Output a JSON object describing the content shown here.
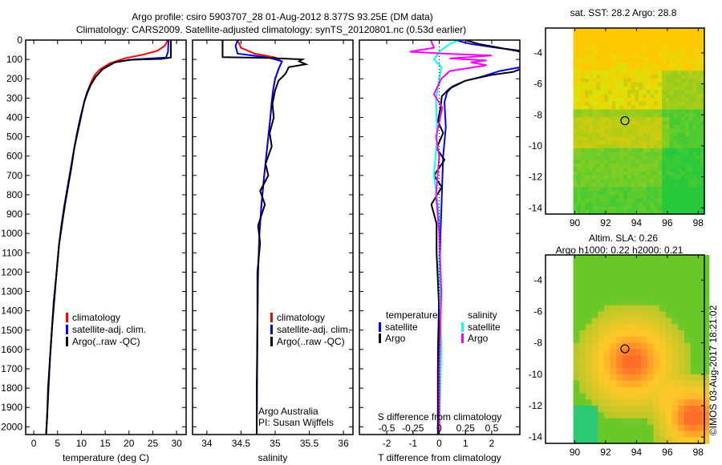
{
  "title": {
    "line1": "Argo profile: csiro 5903707_28 01-Aug-2012 8.377S 93.25E (DM data)",
    "line2": "Climatology: CARS2009. Satellite-adjusted climatology: synTS_20120801.nc (0.53d earlier)"
  },
  "footer": {
    "imos": "©IMOS 03-Aug-2017 18:21:02",
    "credit1": "Argo Australia",
    "credit2": "PI: Susan Wijffels"
  },
  "colors": {
    "climatology": "#ff0000",
    "satellite": "#0000ff",
    "argo": "#000000",
    "sal_satellite": "#00ffff",
    "sal_argo": "#ff00ff"
  },
  "chart_data": [
    {
      "type": "line",
      "id": "temperature",
      "xlabel": "temperature (deg C)",
      "ylabel": "depth",
      "xlim": [
        -1.7,
        32
      ],
      "ylim": [
        2040,
        0
      ],
      "xticks": [
        0,
        5,
        10,
        15,
        20,
        25,
        30
      ],
      "xticklabels": [
        "0",
        "5",
        "10",
        "15",
        "20",
        "25",
        "30"
      ],
      "yticks": [
        0,
        100,
        200,
        300,
        400,
        500,
        600,
        700,
        800,
        900,
        1000,
        1100,
        1200,
        1300,
        1400,
        1500,
        1600,
        1700,
        1800,
        1900,
        2000
      ],
      "yticklabels": [
        "0",
        "100",
        "200",
        "300",
        "400",
        "500",
        "600",
        "700",
        "800",
        "900",
        "1000",
        "1100",
        "1200",
        "1300",
        "1400",
        "1500",
        "1600",
        "1700",
        "1800",
        "1900",
        "2000"
      ],
      "legend": [
        "climatology",
        "satellite-adj. clim.",
        "Argo(..raw -QC)"
      ],
      "series": [
        {
          "name": "climatology",
          "color": "#ff0000",
          "points": [
            [
              28.2,
              0
            ],
            [
              27.5,
              30
            ],
            [
              26,
              55
            ],
            [
              23,
              75
            ],
            [
              19,
              95
            ],
            [
              16,
              120
            ],
            [
              14,
              150
            ],
            [
              12.8,
              180
            ],
            [
              12,
              220
            ],
            [
              11.2,
              270
            ],
            [
              10.6,
              320
            ],
            [
              9.8,
              400
            ],
            [
              9.1,
              480
            ],
            [
              8.5,
              560
            ],
            [
              7.8,
              660
            ],
            [
              7.1,
              760
            ],
            [
              6.4,
              860
            ],
            [
              5.8,
              960
            ],
            [
              5.3,
              1060
            ],
            [
              4.8,
              1200
            ],
            [
              4.2,
              1350
            ],
            [
              3.8,
              1500
            ],
            [
              3.4,
              1650
            ],
            [
              3.1,
              1800
            ],
            [
              2.8,
              1950
            ],
            [
              2.6,
              2040
            ]
          ]
        },
        {
          "name": "satellite-adj. clim.",
          "color": "#0000ff",
          "points": [
            [
              28.3,
              0
            ],
            [
              28.2,
              60
            ],
            [
              27.8,
              90
            ],
            [
              21,
              100
            ],
            [
              17,
              115
            ],
            [
              14.5,
              150
            ],
            [
              13,
              190
            ],
            [
              12,
              230
            ],
            [
              11.2,
              270
            ],
            [
              10.6,
              320
            ],
            [
              9.8,
              400
            ],
            [
              9.1,
              480
            ],
            [
              8.5,
              560
            ],
            [
              7.8,
              660
            ],
            [
              7.1,
              760
            ],
            [
              6.4,
              860
            ],
            [
              5.8,
              960
            ],
            [
              5.3,
              1060
            ],
            [
              4.8,
              1200
            ],
            [
              4.2,
              1350
            ],
            [
              3.8,
              1500
            ],
            [
              3.4,
              1650
            ],
            [
              3.1,
              1800
            ],
            [
              2.8,
              1950
            ],
            [
              2.6,
              2040
            ]
          ]
        },
        {
          "name": "Argo(..raw -QC)",
          "color": "#000000",
          "points": [
            [
              28.8,
              0
            ],
            [
              28.8,
              90
            ],
            [
              27,
              97
            ],
            [
              20,
              102
            ],
            [
              17,
              115
            ],
            [
              14.5,
              150
            ],
            [
              13,
              190
            ],
            [
              12,
              230
            ],
            [
              11.3,
              270
            ],
            [
              10.6,
              320
            ],
            [
              9.9,
              400
            ],
            [
              9.2,
              480
            ],
            [
              8.5,
              560
            ],
            [
              7.9,
              660
            ],
            [
              7.2,
              760
            ],
            [
              6.5,
              860
            ],
            [
              5.9,
              960
            ],
            [
              5.3,
              1060
            ],
            [
              4.8,
              1200
            ],
            [
              4.3,
              1350
            ],
            [
              3.8,
              1500
            ],
            [
              3.4,
              1650
            ],
            [
              3.0,
              1800
            ],
            [
              2.8,
              1950
            ],
            [
              2.6,
              2040
            ]
          ]
        }
      ]
    },
    {
      "type": "line",
      "id": "salinity",
      "xlabel": "salinity",
      "ylabel": "depth",
      "xlim": [
        33.79,
        36.14
      ],
      "ylim": [
        2040,
        0
      ],
      "xticks": [
        34,
        34.5,
        35,
        35.5,
        36
      ],
      "xticklabels": [
        "34",
        "34.5",
        "35",
        "35.5",
        "36"
      ],
      "legend": [
        "climatology",
        "satellite-adj. clim.",
        "Argo(..raw -QC)"
      ],
      "series": [
        {
          "name": "climatology",
          "color": "#ff0000",
          "points": [
            [
              34.45,
              0
            ],
            [
              34.5,
              40
            ],
            [
              34.7,
              70
            ],
            [
              35.0,
              90
            ],
            [
              35.1,
              110
            ],
            [
              35.05,
              150
            ],
            [
              35.0,
              200
            ],
            [
              34.97,
              260
            ],
            [
              34.95,
              320
            ],
            [
              34.93,
              400
            ],
            [
              34.9,
              500
            ],
            [
              34.87,
              600
            ],
            [
              34.84,
              700
            ],
            [
              34.8,
              850
            ],
            [
              34.77,
              1000
            ],
            [
              34.75,
              1200
            ],
            [
              34.74,
              1500
            ],
            [
              34.73,
              2040
            ]
          ]
        },
        {
          "name": "satellite-adj. clim.",
          "color": "#0000ff",
          "points": [
            [
              34.45,
              0
            ],
            [
              34.42,
              30
            ],
            [
              34.45,
              70
            ],
            [
              34.9,
              90
            ],
            [
              35.1,
              110
            ],
            [
              35.05,
              150
            ],
            [
              35.0,
              200
            ],
            [
              34.97,
              260
            ],
            [
              34.95,
              320
            ],
            [
              34.93,
              400
            ],
            [
              34.9,
              500
            ],
            [
              34.87,
              600
            ],
            [
              34.84,
              700
            ],
            [
              34.8,
              850
            ],
            [
              34.77,
              1000
            ],
            [
              34.75,
              1200
            ],
            [
              34.74,
              1500
            ],
            [
              34.73,
              2040
            ]
          ]
        },
        {
          "name": "Argo(..raw -QC)",
          "color": "#000000",
          "points": [
            [
              34.23,
              0
            ],
            [
              34.23,
              88
            ],
            [
              34.9,
              92
            ],
            [
              35.4,
              100
            ],
            [
              35.35,
              110
            ],
            [
              35.45,
              125
            ],
            [
              35.2,
              140
            ],
            [
              35.15,
              175
            ],
            [
              35.05,
              210
            ],
            [
              35.0,
              260
            ],
            [
              34.96,
              330
            ],
            [
              34.98,
              400
            ],
            [
              34.92,
              480
            ],
            [
              34.95,
              550
            ],
            [
              34.86,
              640
            ],
            [
              34.9,
              700
            ],
            [
              34.78,
              780
            ],
            [
              34.85,
              850
            ],
            [
              34.75,
              960
            ],
            [
              34.78,
              1050
            ],
            [
              34.74,
              1200
            ],
            [
              34.74,
              1500
            ],
            [
              34.73,
              1800
            ],
            [
              34.73,
              2040
            ]
          ]
        }
      ]
    },
    {
      "type": "line",
      "id": "difference",
      "xlabel": "T difference from climatology",
      "ylabel": "depth",
      "xlim": [
        -3.04,
        3.07
      ],
      "ylim": [
        2040,
        0
      ],
      "xticks": [
        -2,
        -1,
        0,
        1,
        2
      ],
      "xticklabels": [
        "-2",
        "-1",
        "0",
        "1",
        "2"
      ],
      "secondary_xlabel": "S difference from climatology",
      "secondary_xticks": [
        -0.5,
        -0.25,
        0,
        0.25,
        0.5
      ],
      "secondary_xticklabels": [
        "-0.5",
        "-0.25",
        "0",
        "0.25",
        "0.5"
      ],
      "secondary_scale": 4,
      "legend_groups": {
        "temperature": "temperature",
        "salinity": "salinity",
        "satellite": "satellite",
        "argo": "Argo"
      },
      "series": [
        {
          "name": "T satellite",
          "color": "#0000ff",
          "units": "T",
          "points": [
            [
              0.6,
              0
            ],
            [
              1.2,
              20
            ],
            [
              2.2,
              40
            ],
            [
              3.1,
              55
            ],
            [
              3.1,
              140
            ],
            [
              2.3,
              160
            ],
            [
              1.6,
              190
            ],
            [
              1.0,
              210
            ],
            [
              0.5,
              240
            ],
            [
              0.3,
              270
            ],
            [
              0.2,
              320
            ],
            [
              0.25,
              450
            ],
            [
              0.15,
              600
            ],
            [
              0.1,
              800
            ],
            [
              0.05,
              1000
            ],
            [
              0,
              1300
            ],
            [
              -0.05,
              1600
            ],
            [
              -0.05,
              2040
            ]
          ]
        },
        {
          "name": "T Argo",
          "color": "#000000",
          "units": "T",
          "points": [
            [
              1.0,
              0
            ],
            [
              1.5,
              20
            ],
            [
              2.3,
              40
            ],
            [
              3.1,
              60
            ],
            [
              3.1,
              150
            ],
            [
              2.8,
              165
            ],
            [
              2.0,
              180
            ],
            [
              1.0,
              210
            ],
            [
              0.4,
              250
            ],
            [
              0.1,
              290
            ],
            [
              0.05,
              350
            ],
            [
              -0.05,
              420
            ],
            [
              0.15,
              480
            ],
            [
              -0.1,
              560
            ],
            [
              0.2,
              620
            ],
            [
              -0.2,
              700
            ],
            [
              0.1,
              760
            ],
            [
              -0.3,
              850
            ],
            [
              -0.1,
              950
            ],
            [
              -0.1,
              1100
            ],
            [
              0,
              1400
            ],
            [
              -0.05,
              1700
            ],
            [
              -0.05,
              2040
            ]
          ]
        },
        {
          "name": "S satellite",
          "color": "#00ffff",
          "units": "S",
          "points": [
            [
              0.19,
              0
            ],
            [
              0.1,
              20
            ],
            [
              0.0,
              60
            ],
            [
              -0.05,
              100
            ],
            [
              0.02,
              140
            ],
            [
              0.0,
              200
            ],
            [
              -0.03,
              300
            ],
            [
              -0.02,
              500
            ],
            [
              -0.05,
              700
            ],
            [
              0.0,
              900
            ],
            [
              0.0,
              1200
            ],
            [
              0.02,
              1600
            ],
            [
              0.0,
              2040
            ]
          ]
        },
        {
          "name": "S Argo",
          "color": "#ff00ff",
          "units": "S",
          "points": [
            [
              -0.08,
              0
            ],
            [
              -0.05,
              40
            ],
            [
              -0.28,
              60
            ],
            [
              0.05,
              70
            ],
            [
              0.5,
              80
            ],
            [
              0.1,
              95
            ],
            [
              0.45,
              105
            ],
            [
              0.3,
              115
            ],
            [
              0.45,
              130
            ],
            [
              0.1,
              160
            ],
            [
              0.02,
              200
            ],
            [
              -0.05,
              280
            ],
            [
              0.03,
              350
            ],
            [
              -0.03,
              500
            ],
            [
              0.0,
              600
            ],
            [
              -0.03,
              800
            ],
            [
              0.0,
              1000
            ],
            [
              0.02,
              1300
            ],
            [
              0.0,
              1700
            ],
            [
              0.0,
              2040
            ]
          ]
        }
      ]
    },
    {
      "type": "heatmap",
      "id": "sst_map",
      "title": "sat. SST: 28.2 Argo: 28.8",
      "xlim": [
        88.1,
        98.4
      ],
      "ylim": [
        -14.4,
        -2.4
      ],
      "xticks": [
        90,
        92,
        94,
        96,
        98
      ],
      "xticklabels": [
        "90",
        "92",
        "94",
        "96",
        "98"
      ],
      "yticks": [
        -4,
        -6,
        -8,
        -10,
        -12,
        -14
      ],
      "yticklabels": [
        "-4",
        "-6",
        "-8",
        "-10",
        "-12",
        "-14"
      ],
      "data_lon_min": 89.9,
      "marker": {
        "lon": 93.25,
        "lat": -8.377
      }
    },
    {
      "type": "heatmap",
      "id": "sla_map",
      "title": "Altim. SLA: 0.26",
      "subtitle": "Argo h1000: 0.22 h2000: 0.21",
      "xlim": [
        88.1,
        98.4
      ],
      "ylim": [
        -14.4,
        -2.4
      ],
      "xticks": [
        90,
        92,
        94,
        96,
        98
      ],
      "xticklabels": [
        "90",
        "92",
        "94",
        "96",
        "98"
      ],
      "yticks": [
        -4,
        -6,
        -8,
        -10,
        -12,
        -14
      ],
      "yticklabels": [
        "-4",
        "-6",
        "-8",
        "-10",
        "-12",
        "-14"
      ],
      "data_lon_min": 89.9,
      "marker": {
        "lon": 93.25,
        "lat": -8.377
      }
    }
  ]
}
